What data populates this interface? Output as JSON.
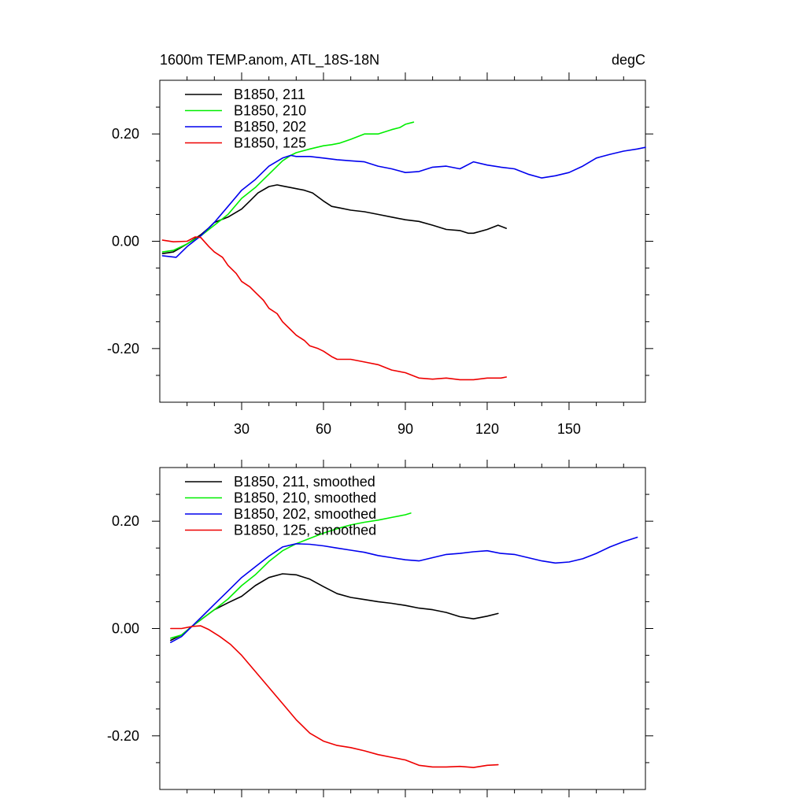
{
  "header": {
    "title_left": "1600m TEMP.anom, ATL_18S-18N",
    "title_right": "degC"
  },
  "colors": {
    "211": "#000000",
    "210": "#00ee00",
    "202": "#0000ee",
    "125": "#ee0000"
  },
  "chart_data": [
    {
      "type": "line",
      "panel": "top",
      "xlim": [
        0,
        178
      ],
      "ylim": [
        -0.3,
        0.3
      ],
      "x_ticks": [
        30,
        60,
        90,
        120,
        150
      ],
      "y_ticks": [
        -0.2,
        0.0,
        0.2
      ],
      "x_tick_labels": [
        "30",
        "60",
        "90",
        "120",
        "150"
      ],
      "y_tick_labels": [
        "-0.20",
        "0.00",
        "0.20"
      ],
      "legend_position": "top-left",
      "series": [
        {
          "name": "B1850, 211",
          "color": "#000000",
          "x": [
            1,
            5,
            10,
            15,
            18,
            20,
            25,
            30,
            33,
            36,
            40,
            43,
            45,
            48,
            50,
            53,
            56,
            60,
            63,
            66,
            70,
            75,
            80,
            85,
            90,
            95,
            100,
            105,
            110,
            113,
            115,
            120,
            124,
            127
          ],
          "y": [
            -0.023,
            -0.02,
            -0.005,
            0.012,
            0.025,
            0.035,
            0.045,
            0.06,
            0.075,
            0.09,
            0.102,
            0.105,
            0.103,
            0.1,
            0.098,
            0.095,
            0.09,
            0.075,
            0.065,
            0.062,
            0.058,
            0.055,
            0.05,
            0.045,
            0.04,
            0.037,
            0.03,
            0.022,
            0.02,
            0.015,
            0.015,
            0.022,
            0.03,
            0.024
          ]
        },
        {
          "name": "B1850, 210",
          "color": "#00ee00",
          "x": [
            1,
            5,
            10,
            15,
            20,
            25,
            30,
            35,
            40,
            45,
            48,
            50,
            55,
            60,
            63,
            66,
            70,
            75,
            80,
            85,
            88,
            90,
            93
          ],
          "y": [
            -0.02,
            -0.017,
            -0.005,
            0.01,
            0.03,
            0.05,
            0.08,
            0.1,
            0.125,
            0.15,
            0.16,
            0.165,
            0.172,
            0.178,
            0.18,
            0.183,
            0.19,
            0.2,
            0.2,
            0.208,
            0.212,
            0.218,
            0.222
          ]
        },
        {
          "name": "B1850, 202",
          "color": "#0000ee",
          "x": [
            1,
            6,
            10,
            15,
            20,
            25,
            30,
            35,
            40,
            45,
            48,
            50,
            55,
            60,
            65,
            70,
            75,
            80,
            85,
            90,
            95,
            100,
            105,
            110,
            115,
            120,
            125,
            130,
            135,
            140,
            145,
            150,
            155,
            160,
            165,
            170,
            175,
            178
          ],
          "y": [
            -0.027,
            -0.03,
            -0.01,
            0.01,
            0.035,
            0.065,
            0.095,
            0.115,
            0.14,
            0.155,
            0.16,
            0.158,
            0.158,
            0.155,
            0.152,
            0.15,
            0.148,
            0.14,
            0.135,
            0.128,
            0.13,
            0.138,
            0.14,
            0.135,
            0.148,
            0.142,
            0.138,
            0.135,
            0.125,
            0.118,
            0.122,
            0.128,
            0.14,
            0.155,
            0.162,
            0.168,
            0.172,
            0.175
          ]
        },
        {
          "name": "B1850, 125",
          "color": "#ee0000",
          "x": [
            1,
            5,
            10,
            13,
            15,
            18,
            20,
            23,
            25,
            28,
            30,
            33,
            35,
            38,
            40,
            43,
            45,
            48,
            50,
            53,
            55,
            58,
            60,
            63,
            65,
            70,
            75,
            80,
            85,
            90,
            95,
            100,
            105,
            110,
            115,
            120,
            125,
            127
          ],
          "y": [
            0.002,
            -0.001,
            0.0,
            0.008,
            0.007,
            -0.01,
            -0.02,
            -0.03,
            -0.045,
            -0.06,
            -0.075,
            -0.085,
            -0.095,
            -0.11,
            -0.125,
            -0.135,
            -0.15,
            -0.165,
            -0.175,
            -0.185,
            -0.195,
            -0.2,
            -0.205,
            -0.215,
            -0.22,
            -0.22,
            -0.225,
            -0.23,
            -0.24,
            -0.245,
            -0.255,
            -0.257,
            -0.255,
            -0.258,
            -0.258,
            -0.255,
            -0.255,
            -0.253
          ]
        }
      ]
    },
    {
      "type": "line",
      "panel": "bottom",
      "xlim": [
        0,
        178
      ],
      "ylim": [
        -0.3,
        0.3
      ],
      "x_ticks": [
        30,
        60,
        90,
        120,
        150
      ],
      "y_ticks": [
        -0.2,
        0.0,
        0.2
      ],
      "y_tick_labels": [
        "-0.20",
        "0.00",
        "0.20"
      ],
      "legend_position": "top-left",
      "series": [
        {
          "name": "B1850, 211, smoothed",
          "color": "#000000",
          "x": [
            4,
            8,
            12,
            16,
            20,
            25,
            30,
            35,
            40,
            45,
            50,
            55,
            60,
            65,
            70,
            75,
            80,
            85,
            90,
            95,
            100,
            105,
            110,
            115,
            120,
            124
          ],
          "y": [
            -0.022,
            -0.012,
            0.005,
            0.02,
            0.035,
            0.048,
            0.06,
            0.08,
            0.095,
            0.102,
            0.1,
            0.092,
            0.078,
            0.065,
            0.058,
            0.054,
            0.05,
            0.047,
            0.043,
            0.038,
            0.035,
            0.03,
            0.022,
            0.018,
            0.023,
            0.028
          ]
        },
        {
          "name": "B1850, 210, smoothed",
          "color": "#00ee00",
          "x": [
            4,
            8,
            12,
            16,
            20,
            25,
            30,
            35,
            40,
            45,
            50,
            55,
            60,
            65,
            70,
            75,
            80,
            85,
            90,
            92
          ],
          "y": [
            -0.018,
            -0.012,
            0.005,
            0.02,
            0.035,
            0.055,
            0.08,
            0.1,
            0.125,
            0.145,
            0.158,
            0.168,
            0.178,
            0.186,
            0.193,
            0.198,
            0.202,
            0.207,
            0.212,
            0.215
          ]
        },
        {
          "name": "B1850, 202, smoothed",
          "color": "#0000ee",
          "x": [
            4,
            8,
            12,
            16,
            20,
            25,
            30,
            35,
            40,
            45,
            50,
            55,
            60,
            65,
            70,
            75,
            80,
            85,
            90,
            95,
            100,
            105,
            110,
            115,
            120,
            125,
            130,
            135,
            140,
            145,
            150,
            155,
            160,
            165,
            170,
            175
          ],
          "y": [
            -0.026,
            -0.015,
            0.005,
            0.025,
            0.045,
            0.07,
            0.095,
            0.115,
            0.135,
            0.152,
            0.158,
            0.157,
            0.154,
            0.15,
            0.146,
            0.142,
            0.136,
            0.132,
            0.128,
            0.126,
            0.132,
            0.138,
            0.14,
            0.143,
            0.145,
            0.14,
            0.138,
            0.132,
            0.126,
            0.122,
            0.124,
            0.13,
            0.14,
            0.152,
            0.162,
            0.17
          ]
        },
        {
          "name": "B1850, 125, smoothed",
          "color": "#ee0000",
          "x": [
            4,
            8,
            12,
            15,
            18,
            22,
            26,
            30,
            35,
            40,
            45,
            50,
            55,
            60,
            65,
            70,
            75,
            80,
            85,
            90,
            95,
            100,
            105,
            110,
            115,
            120,
            124
          ],
          "y": [
            0.0,
            0.0,
            0.004,
            0.005,
            -0.002,
            -0.015,
            -0.03,
            -0.05,
            -0.08,
            -0.11,
            -0.14,
            -0.17,
            -0.195,
            -0.21,
            -0.218,
            -0.222,
            -0.228,
            -0.235,
            -0.24,
            -0.245,
            -0.255,
            -0.258,
            -0.258,
            -0.257,
            -0.259,
            -0.255,
            -0.254
          ]
        }
      ]
    }
  ]
}
